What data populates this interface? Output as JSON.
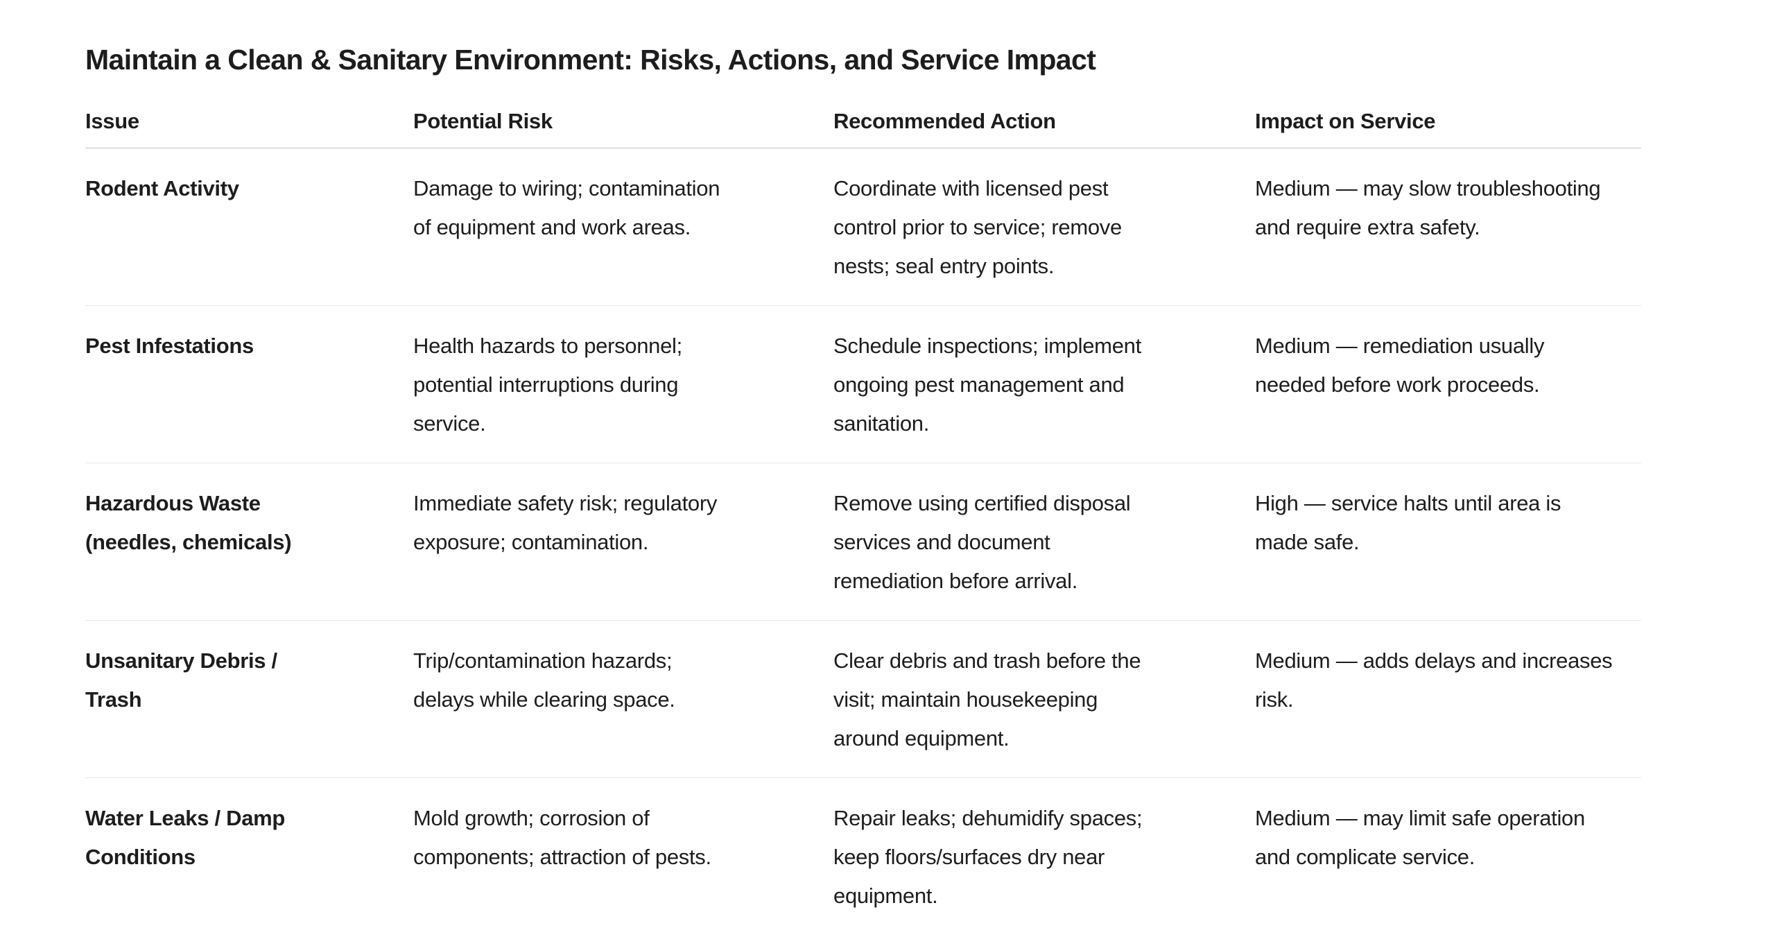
{
  "page": {
    "title": "Maintain a Clean & Sanitary Environment: Risks, Actions, and Service Impact",
    "background_color": "#ffffff",
    "text_color": "#1d1d1f",
    "header_divider_color": "#c6c6c8",
    "row_divider_color": "#e8e8ea"
  },
  "table": {
    "columns": [
      "Issue",
      "Potential Risk",
      "Recommended Action",
      "Impact on Service"
    ],
    "rows": [
      {
        "issue": "Rodent Activity",
        "potential_risk": "Damage to wiring; contamination\nof equipment and work areas.",
        "recommended_action": "Coordinate with licensed pest\ncontrol prior to service; remove\nnests; seal entry points.",
        "impact_on_service": "Medium — may slow troubleshooting\nand require extra safety."
      },
      {
        "issue": "Pest Infestations",
        "potential_risk": "Health hazards to personnel;\npotential interruptions during\nservice.",
        "recommended_action": "Schedule inspections; implement\nongoing pest management and\nsanitation.",
        "impact_on_service": "Medium — remediation usually\nneeded before work proceeds."
      },
      {
        "issue": "Hazardous Waste\n(needles, chemicals)",
        "potential_risk": "Immediate safety risk; regulatory\nexposure; contamination.",
        "recommended_action": "Remove using certified disposal\nservices and document\nremediation before arrival.",
        "impact_on_service": "High — service halts until area is\nmade safe."
      },
      {
        "issue": "Unsanitary Debris /\nTrash",
        "potential_risk": "Trip/contamination hazards;\ndelays while clearing space.",
        "recommended_action": "Clear debris and trash before the\nvisit; maintain housekeeping\naround equipment.",
        "impact_on_service": "Medium — adds delays and increases\nrisk."
      },
      {
        "issue": "Water Leaks / Damp\nConditions",
        "potential_risk": "Mold growth; corrosion of\ncomponents; attraction of pests.",
        "recommended_action": "Repair leaks; dehumidify spaces;\nkeep floors/surfaces dry near\nequipment.",
        "impact_on_service": "Medium — may limit safe operation\nand complicate service."
      }
    ]
  }
}
